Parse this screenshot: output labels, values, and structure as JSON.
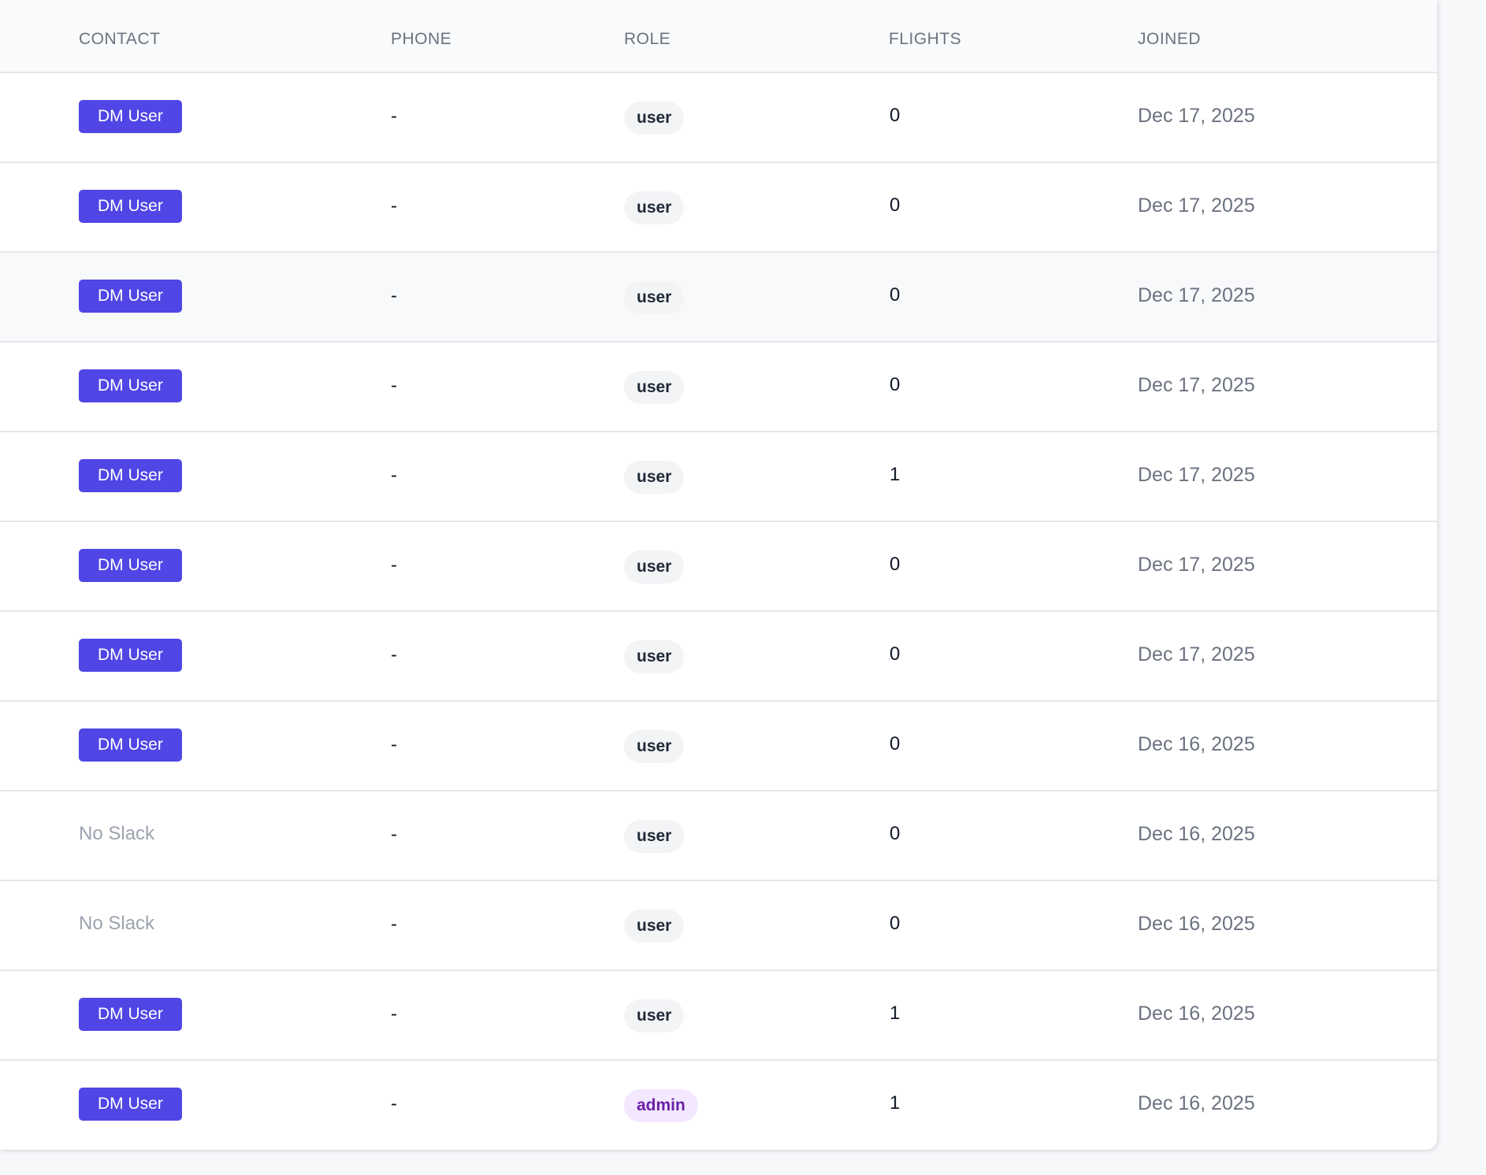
{
  "table": {
    "headers": {
      "contact": "CONTACT",
      "phone": "PHONE",
      "role": "ROLE",
      "flights": "FLIGHTS",
      "joined": "JOINED"
    },
    "rows": [
      {
        "contact": "DM User",
        "contact_type": "dm",
        "phone": "-",
        "role": "user",
        "flights": "0",
        "joined": "Dec 17, 2025"
      },
      {
        "contact": "DM User",
        "contact_type": "dm",
        "phone": "-",
        "role": "user",
        "flights": "0",
        "joined": "Dec 17, 2025"
      },
      {
        "contact": "DM User",
        "contact_type": "dm",
        "phone": "-",
        "role": "user",
        "flights": "0",
        "joined": "Dec 17, 2025"
      },
      {
        "contact": "DM User",
        "contact_type": "dm",
        "phone": "-",
        "role": "user",
        "flights": "0",
        "joined": "Dec 17, 2025"
      },
      {
        "contact": "DM User",
        "contact_type": "dm",
        "phone": "-",
        "role": "user",
        "flights": "1",
        "joined": "Dec 17, 2025"
      },
      {
        "contact": "DM User",
        "contact_type": "dm",
        "phone": "-",
        "role": "user",
        "flights": "0",
        "joined": "Dec 17, 2025"
      },
      {
        "contact": "DM User",
        "contact_type": "dm",
        "phone": "-",
        "role": "user",
        "flights": "0",
        "joined": "Dec 17, 2025"
      },
      {
        "contact": "DM User",
        "contact_type": "dm",
        "phone": "-",
        "role": "user",
        "flights": "0",
        "joined": "Dec 16, 2025"
      },
      {
        "contact": "No Slack",
        "contact_type": "none",
        "phone": "-",
        "role": "user",
        "flights": "0",
        "joined": "Dec 16, 2025"
      },
      {
        "contact": "No Slack",
        "contact_type": "none",
        "phone": "-",
        "role": "user",
        "flights": "0",
        "joined": "Dec 16, 2025"
      },
      {
        "contact": "DM User",
        "contact_type": "dm",
        "phone": "-",
        "role": "user",
        "flights": "1",
        "joined": "Dec 16, 2025"
      },
      {
        "contact": "DM User",
        "contact_type": "dm",
        "phone": "-",
        "role": "admin",
        "flights": "1",
        "joined": "Dec 16, 2025"
      }
    ]
  },
  "colors": {
    "dm_button": "#4f46e5",
    "admin_badge_bg": "#f3e8ff",
    "admin_badge_text": "#6b21a8",
    "user_badge_bg": "#f3f4f6"
  }
}
